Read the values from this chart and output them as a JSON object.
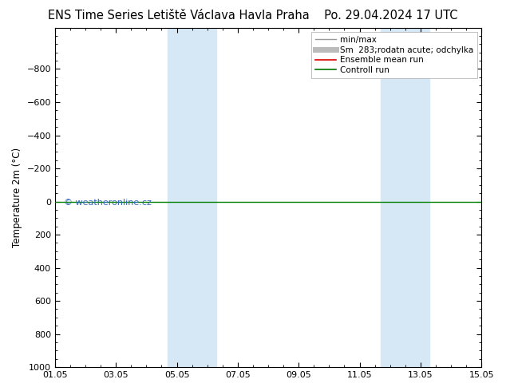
{
  "title_left": "ENS Time Series Letiště Václava Havla Praha",
  "title_right": "Po. 29.04.2024 17 UTC",
  "ylabel": "Temperature 2m (°C)",
  "ylim_bottom": 1000,
  "ylim_top": -1050,
  "yticks": [
    -800,
    -600,
    -400,
    -200,
    0,
    200,
    400,
    600,
    800,
    1000
  ],
  "xlim": [
    0,
    14
  ],
  "xtick_labels": [
    "01.05",
    "03.05",
    "05.05",
    "07.05",
    "09.05",
    "11.05",
    "13.05",
    "15.05"
  ],
  "xtick_positions_days": [
    0,
    2,
    4,
    6,
    8,
    10,
    12,
    14
  ],
  "shaded_bands": [
    {
      "x_start_day": 3.7,
      "x_end_day": 5.3
    },
    {
      "x_start_day": 10.7,
      "x_end_day": 12.3
    }
  ],
  "band_color": "#d6e8f5",
  "green_line_y": 0,
  "green_line_color": "#008000",
  "watermark": "© weatheronline.cz",
  "watermark_color": "#3366bb",
  "legend_entries": [
    {
      "label": "min/max",
      "color": "#999999",
      "lw": 1.0
    },
    {
      "label": "Sm  283;rodatn acute; odchylka",
      "color": "#bbbbbb",
      "lw": 5
    },
    {
      "label": "Ensemble mean run",
      "color": "#dd0000",
      "lw": 1.2
    },
    {
      "label": "Controll run",
      "color": "#007700",
      "lw": 1.2
    }
  ],
  "title_fontsize": 10.5,
  "axis_label_fontsize": 8.5,
  "tick_fontsize": 8,
  "background_color": "#ffffff",
  "plot_bg_color": "#ffffff"
}
